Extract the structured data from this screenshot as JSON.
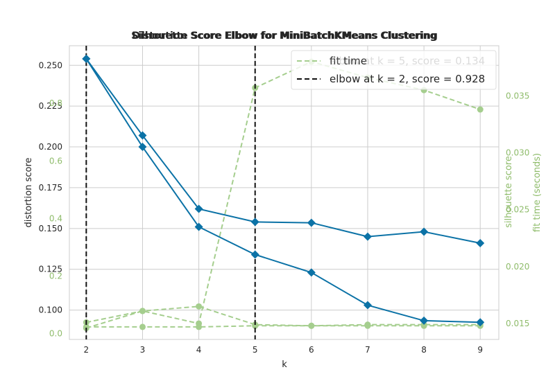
{
  "colors": {
    "blue": "#0b72a6",
    "green": "#a5ce8e",
    "green_text": "#8fbc6b",
    "grid": "#cccccc",
    "elbow": "#111111"
  },
  "chart_data": [
    {
      "type": "line",
      "title": "Silhouette Score Elbow for MiniBatchKMeans Clustering",
      "xlabel": "",
      "ylabel": "",
      "y2label": "silhouette score",
      "x": [
        2,
        3,
        4,
        5,
        6,
        7,
        8,
        9
      ],
      "series": [
        {
          "name": "fit time",
          "axis": "time",
          "values": [
            0.0151,
            0.0161,
            0.0165,
            0.0149,
            0.0148,
            0.0149,
            0.0149,
            0.0149
          ]
        }
      ],
      "elbow": {
        "k": 5,
        "score": 0.134,
        "legend": "elbow at k = 5, score = 0.134"
      },
      "y_ticks_left": [],
      "y_ticks_right": [
        "0.0",
        "0.2",
        "0.4",
        "0.6",
        "0.8"
      ],
      "ylim_right": [
        -0.02,
        1.0
      ]
    },
    {
      "type": "line",
      "title": "Distortion Score Elbow for MiniBatchKMeans Clustering",
      "xlabel": "k",
      "ylabel": "distortion score",
      "y2label": "fit time (seconds)",
      "x": [
        2,
        3,
        4,
        5,
        6,
        7,
        8,
        9
      ],
      "series": [
        {
          "name": "",
          "axis": "left",
          "values": [
            0.254,
            0.2,
            0.151,
            0.134,
            0.123,
            0.103,
            0.0935,
            0.0925
          ]
        },
        {
          "name": "",
          "axis": "left",
          "values": [
            0.254,
            0.207,
            0.162,
            0.154,
            0.1535,
            0.145,
            0.148,
            0.141
          ]
        },
        {
          "name": "fit time",
          "axis": "time",
          "values": [
            0.0147,
            0.0147,
            0.0147,
            0.0148,
            0.0148,
            0.0148,
            0.0148,
            0.0148
          ]
        },
        {
          "name": "fit time",
          "axis": "time",
          "values": [
            0.0146,
            0.0161,
            0.015,
            0.0357,
            0.038,
            0.0366,
            0.0355,
            0.0338
          ]
        }
      ],
      "elbow": {
        "k": 2,
        "score": 0.928,
        "legend": "elbow at k = 2, score = 0.928"
      },
      "legend_labels": [
        "fit time",
        "elbow at k = 2, score = 0.928"
      ],
      "x_ticks": [
        "2",
        "3",
        "4",
        "5",
        "6",
        "7",
        "8",
        "9"
      ],
      "y_ticks_left": [
        "0.100",
        "0.125",
        "0.150",
        "0.175",
        "0.200",
        "0.225",
        "0.250"
      ],
      "ylim_left": [
        0.082,
        0.262
      ],
      "y_ticks_time": [
        "0.015",
        "0.020",
        "0.025",
        "0.030",
        "0.035"
      ],
      "ylim_time": [
        0.0136,
        0.0394
      ],
      "xlim": [
        1.7,
        9.33
      ],
      "grid": true,
      "legend_position": "top-right"
    }
  ]
}
